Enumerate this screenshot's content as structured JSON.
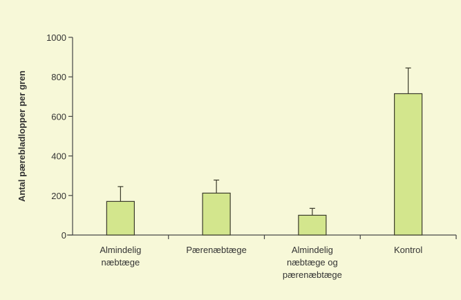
{
  "chart_data": {
    "type": "bar",
    "title": "",
    "xlabel": "",
    "ylabel": "Antal pærebladlopper per gren",
    "ylim": [
      0,
      1000
    ],
    "yticks": [
      0,
      200,
      400,
      600,
      800,
      1000
    ],
    "grid": false,
    "categories": [
      [
        "Almindelig",
        "næbtæge"
      ],
      [
        "Pærenæbtæge"
      ],
      [
        "Almindelig",
        "næbtæge og",
        "pærenæbtæge"
      ],
      [
        "Kontrol"
      ]
    ],
    "values": [
      170,
      212,
      100,
      715
    ],
    "error_upper": [
      245,
      278,
      135,
      845
    ],
    "colors": {
      "background": "#f7f8d8",
      "bar_fill": "#d3e68d",
      "bar_stroke": "#3a3a2a",
      "axis": "#444444"
    }
  }
}
